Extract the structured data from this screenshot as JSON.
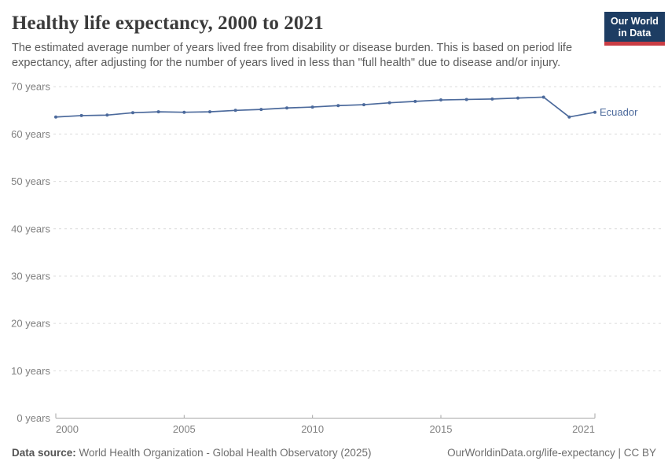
{
  "header": {
    "title": "Healthy life expectancy, 2000 to 2021",
    "subtitle": "The estimated average number of years lived free from disability or disease burden. This is based on period life expectancy, after adjusting for the number of years lived in less than \"full health\" due to disease and/or injury.",
    "logo": {
      "line1": "Our World",
      "line2": "in Data",
      "bg_color": "#1d3d63",
      "bar_color": "#c93c44"
    }
  },
  "chart_data": {
    "type": "line",
    "title": "Healthy life expectancy, 2000 to 2021",
    "xlabel": "",
    "ylabel": "",
    "x": [
      2000,
      2001,
      2002,
      2003,
      2004,
      2005,
      2006,
      2007,
      2008,
      2009,
      2010,
      2011,
      2012,
      2013,
      2014,
      2015,
      2016,
      2017,
      2018,
      2019,
      2020,
      2021
    ],
    "series": [
      {
        "name": "Ecuador",
        "color": "#4C6A9C",
        "values": [
          63.6,
          63.9,
          64.0,
          64.5,
          64.7,
          64.6,
          64.7,
          65.0,
          65.2,
          65.5,
          65.7,
          66.0,
          66.2,
          66.6,
          66.9,
          67.2,
          67.3,
          67.4,
          67.6,
          67.8,
          63.6,
          64.6
        ]
      }
    ],
    "ylim": [
      0,
      70
    ],
    "yticks": [
      0,
      10,
      20,
      30,
      40,
      50,
      60,
      70
    ],
    "ytick_suffix": " years",
    "xticks": [
      2000,
      2005,
      2010,
      2015,
      2021
    ],
    "grid": "horizontal-dashed",
    "legend_position": "end-of-line-label",
    "colors": {
      "grid": "#dcdcdc",
      "axis": "#a6a6a6",
      "tick_label": "#808080"
    }
  },
  "footer": {
    "source_label": "Data source:",
    "source_text": " World Health Organization - Global Health Observatory (2025)",
    "link_text": "OurWorldinData.org/life-expectancy | CC BY"
  }
}
